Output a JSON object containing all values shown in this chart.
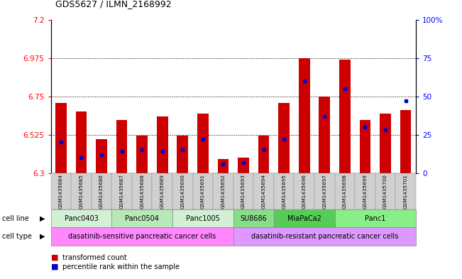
{
  "title": "GDS5627 / ILMN_2168992",
  "samples": [
    "GSM1435684",
    "GSM1435685",
    "GSM1435686",
    "GSM1435687",
    "GSM1435688",
    "GSM1435689",
    "GSM1435690",
    "GSM1435691",
    "GSM1435692",
    "GSM1435693",
    "GSM1435694",
    "GSM1435695",
    "GSM1435696",
    "GSM1435697",
    "GSM1435698",
    "GSM1435699",
    "GSM1435700",
    "GSM1435701"
  ],
  "bar_values": [
    6.71,
    6.66,
    6.5,
    6.61,
    6.52,
    6.63,
    6.52,
    6.65,
    6.38,
    6.39,
    6.52,
    6.71,
    6.975,
    6.75,
    6.965,
    6.61,
    6.65,
    6.67
  ],
  "percentile_values": [
    20,
    10,
    12,
    14,
    15,
    14,
    15,
    22,
    6,
    7,
    15,
    22,
    60,
    37,
    55,
    30,
    28,
    47
  ],
  "ylim_left": [
    6.3,
    7.2
  ],
  "ylim_right": [
    0,
    100
  ],
  "yticks_left": [
    6.3,
    6.525,
    6.75,
    6.975,
    7.2
  ],
  "ytick_labels_left": [
    "6.3",
    "6.525",
    "6.75",
    "6.975",
    "7.2"
  ],
  "yticks_right": [
    0,
    25,
    50,
    75,
    100
  ],
  "ytick_labels_right": [
    "0",
    "25",
    "50",
    "75",
    "100%"
  ],
  "hlines": [
    6.525,
    6.75,
    6.975
  ],
  "cell_lines": [
    {
      "label": "Panc0403",
      "start": 0,
      "end": 3,
      "color": "#d4f0d4"
    },
    {
      "label": "Panc0504",
      "start": 3,
      "end": 6,
      "color": "#b8e8b8"
    },
    {
      "label": "Panc1005",
      "start": 6,
      "end": 9,
      "color": "#d4f0d4"
    },
    {
      "label": "SU8686",
      "start": 9,
      "end": 11,
      "color": "#88dd88"
    },
    {
      "label": "MiaPaCa2",
      "start": 11,
      "end": 14,
      "color": "#55cc55"
    },
    {
      "label": "Panc1",
      "start": 14,
      "end": 18,
      "color": "#88ee88"
    }
  ],
  "cell_types": [
    {
      "label": "dasatinib-sensitive pancreatic cancer cells",
      "start": 0,
      "end": 9,
      "color": "#ff88ff"
    },
    {
      "label": "dasatinib-resistant pancreatic cancer cells",
      "start": 9,
      "end": 18,
      "color": "#dd99ff"
    }
  ],
  "bar_color": "#cc0000",
  "marker_color": "#0000cc",
  "bar_width": 0.55,
  "background_color": "#ffffff"
}
